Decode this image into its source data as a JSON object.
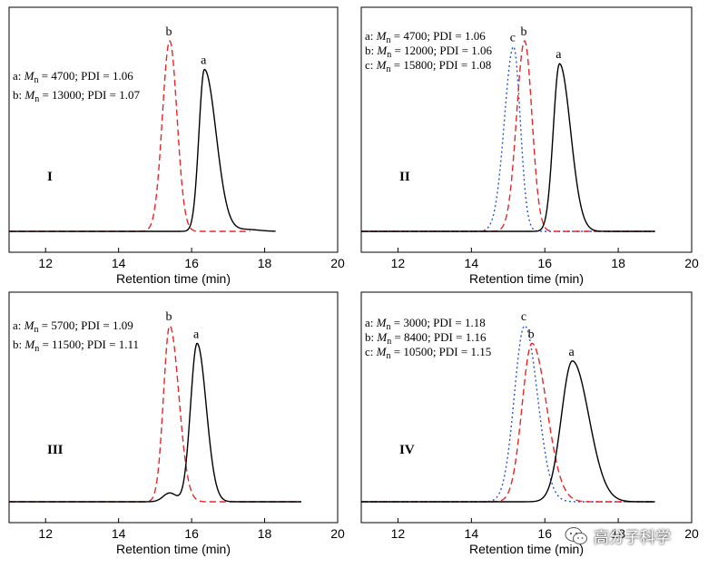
{
  "colors": {
    "a": "#000000",
    "b": "#e8262a",
    "c": "#2a55d6",
    "axis": "#000000"
  },
  "watermark": {
    "text": "高分子科学",
    "icon": "wechat-icon"
  },
  "chart_data": [
    {
      "type": "line",
      "panel_id": "I",
      "xlabel": "Retention time (min)",
      "ylabel": "",
      "xlim": [
        11,
        20
      ],
      "xticks": [
        "12",
        "14",
        "16",
        "18",
        "20"
      ],
      "legend": [
        "a: Mn = 4700; PDI = 1.06",
        "b: Mn = 13000; PDI = 1.07"
      ],
      "series": [
        {
          "name": "a",
          "style": "solid",
          "x_range": [
            11,
            18.3
          ],
          "peak_x": 16.35,
          "peak_height": 0.85,
          "sigma_left": 0.15,
          "sigma_right": 0.32,
          "tail_bump": 0.01
        },
        {
          "name": "b",
          "style": "dashed",
          "x_range": [
            11,
            17.6
          ],
          "peak_x": 15.4,
          "peak_height": 1.0,
          "sigma_left": 0.2,
          "sigma_right": 0.2
        }
      ]
    },
    {
      "type": "line",
      "panel_id": "II",
      "xlabel": "Retention time (min)",
      "ylabel": "",
      "xlim": [
        11,
        20
      ],
      "xticks": [
        "12",
        "14",
        "16",
        "18",
        "20"
      ],
      "legend": [
        "a: Mn = 4700; PDI = 1.06",
        "b: Mn = 12000; PDI = 1.06",
        "c: Mn = 15800; PDI = 1.08"
      ],
      "series": [
        {
          "name": "a",
          "style": "solid",
          "x_range": [
            11,
            19
          ],
          "peak_x": 16.4,
          "peak_height": 0.88,
          "sigma_left": 0.17,
          "sigma_right": 0.3
        },
        {
          "name": "b",
          "style": "dashed",
          "x_range": [
            11,
            19
          ],
          "peak_x": 15.45,
          "peak_height": 1.0,
          "sigma_left": 0.22,
          "sigma_right": 0.2
        },
        {
          "name": "c",
          "style": "dotted",
          "x_range": [
            11,
            19
          ],
          "peak_x": 15.15,
          "peak_height": 0.97,
          "sigma_left": 0.25,
          "sigma_right": 0.18
        }
      ]
    },
    {
      "type": "line",
      "panel_id": "III",
      "xlabel": "Retention time (min)",
      "ylabel": "",
      "xlim": [
        11,
        20
      ],
      "xticks": [
        "12",
        "14",
        "16",
        "18",
        "20"
      ],
      "legend": [
        "a: Mn = 5700; PDI = 1.09",
        "b: Mn = 11500; PDI = 1.11"
      ],
      "series": [
        {
          "name": "a",
          "style": "solid",
          "x_range": [
            11,
            19
          ],
          "peak_x": 16.15,
          "peak_height": 0.9,
          "sigma_left": 0.18,
          "sigma_right": 0.25,
          "shoulder_x": 15.4,
          "shoulder_height": 0.05
        },
        {
          "name": "b",
          "style": "dashed",
          "x_range": [
            11,
            19
          ],
          "peak_x": 15.4,
          "peak_height": 1.0,
          "sigma_left": 0.17,
          "sigma_right": 0.25
        }
      ]
    },
    {
      "type": "line",
      "panel_id": "IV",
      "xlabel": "Retention time (min)",
      "ylabel": "",
      "xlim": [
        11,
        20
      ],
      "xticks": [
        "12",
        "14",
        "16",
        "18",
        "20"
      ],
      "legend": [
        "a: Mn = 3000; PDI = 1.18",
        "b: Mn = 8400; PDI = 1.16",
        "c: Mn = 10500; PDI = 1.15"
      ],
      "series": [
        {
          "name": "a",
          "style": "solid",
          "x_range": [
            11,
            19
          ],
          "peak_x": 16.75,
          "peak_height": 0.8,
          "sigma_left": 0.3,
          "sigma_right": 0.45
        },
        {
          "name": "b",
          "style": "dashed",
          "x_range": [
            11,
            19
          ],
          "peak_x": 15.65,
          "peak_height": 0.9,
          "sigma_left": 0.27,
          "sigma_right": 0.4
        },
        {
          "name": "c",
          "style": "dotted",
          "x_range": [
            11,
            19
          ],
          "peak_x": 15.45,
          "peak_height": 1.0,
          "sigma_left": 0.28,
          "sigma_right": 0.35
        }
      ]
    }
  ]
}
